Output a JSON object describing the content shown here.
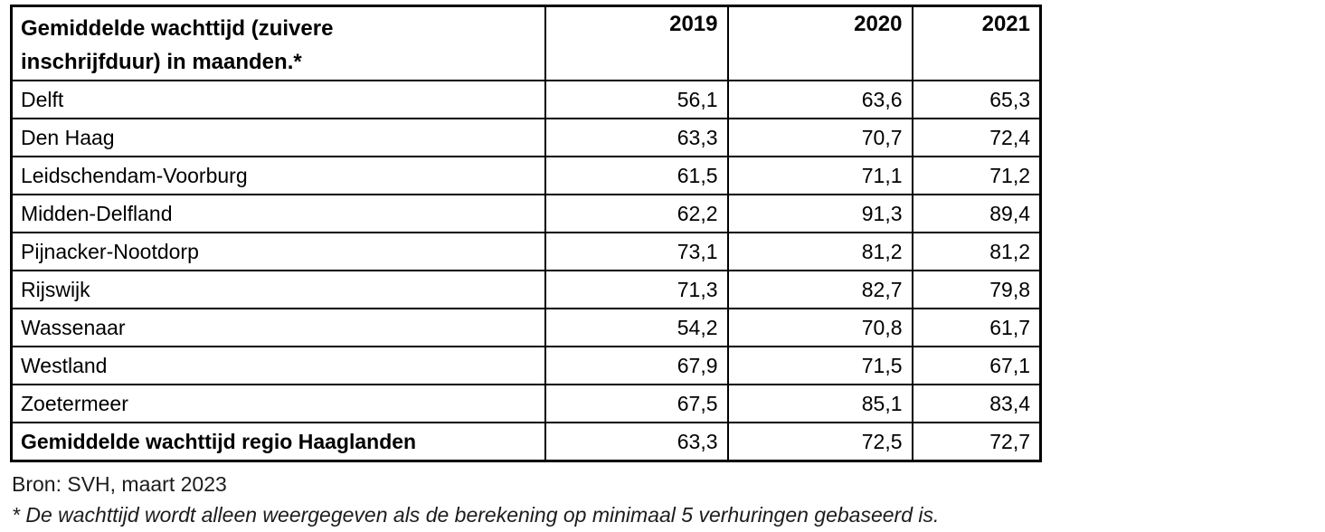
{
  "table": {
    "title_lines": [
      "Gemiddelde wachttijd (zuivere",
      "inschrijfduur) in maanden.*"
    ],
    "years": [
      "2019",
      "2020",
      "2021"
    ],
    "rows": [
      {
        "name": "Delft",
        "values": [
          "56,1",
          "63,6",
          "65,3"
        ],
        "bold": false
      },
      {
        "name": "Den Haag",
        "values": [
          "63,3",
          "70,7",
          "72,4"
        ],
        "bold": false
      },
      {
        "name": "Leidschendam-Voorburg",
        "values": [
          "61,5",
          "71,1",
          "71,2"
        ],
        "bold": false
      },
      {
        "name": "Midden-Delfland",
        "values": [
          "62,2",
          "91,3",
          "89,4"
        ],
        "bold": false
      },
      {
        "name": "Pijnacker-Nootdorp",
        "values": [
          "73,1",
          "81,2",
          "81,2"
        ],
        "bold": false
      },
      {
        "name": "Rijswijk",
        "values": [
          "71,3",
          "82,7",
          "79,8"
        ],
        "bold": false
      },
      {
        "name": "Wassenaar",
        "values": [
          "54,2",
          "70,8",
          "61,7"
        ],
        "bold": false
      },
      {
        "name": "Westland",
        "values": [
          "67,9",
          "71,5",
          "67,1"
        ],
        "bold": false
      },
      {
        "name": "Zoetermeer",
        "values": [
          "67,5",
          "85,1",
          "83,4"
        ],
        "bold": false
      },
      {
        "name": "Gemiddelde wachttijd regio Haaglanden",
        "values": [
          "63,3",
          "72,5",
          "72,7"
        ],
        "bold": true
      }
    ]
  },
  "footer": {
    "source": "Bron: SVH, maart 2023",
    "note": "* De wachttijd wordt alleen weergegeven als de berekening op minimaal 5 verhuringen gebaseerd is."
  },
  "colors": {
    "border": "#000000",
    "text": "#000000",
    "background": "#ffffff"
  }
}
